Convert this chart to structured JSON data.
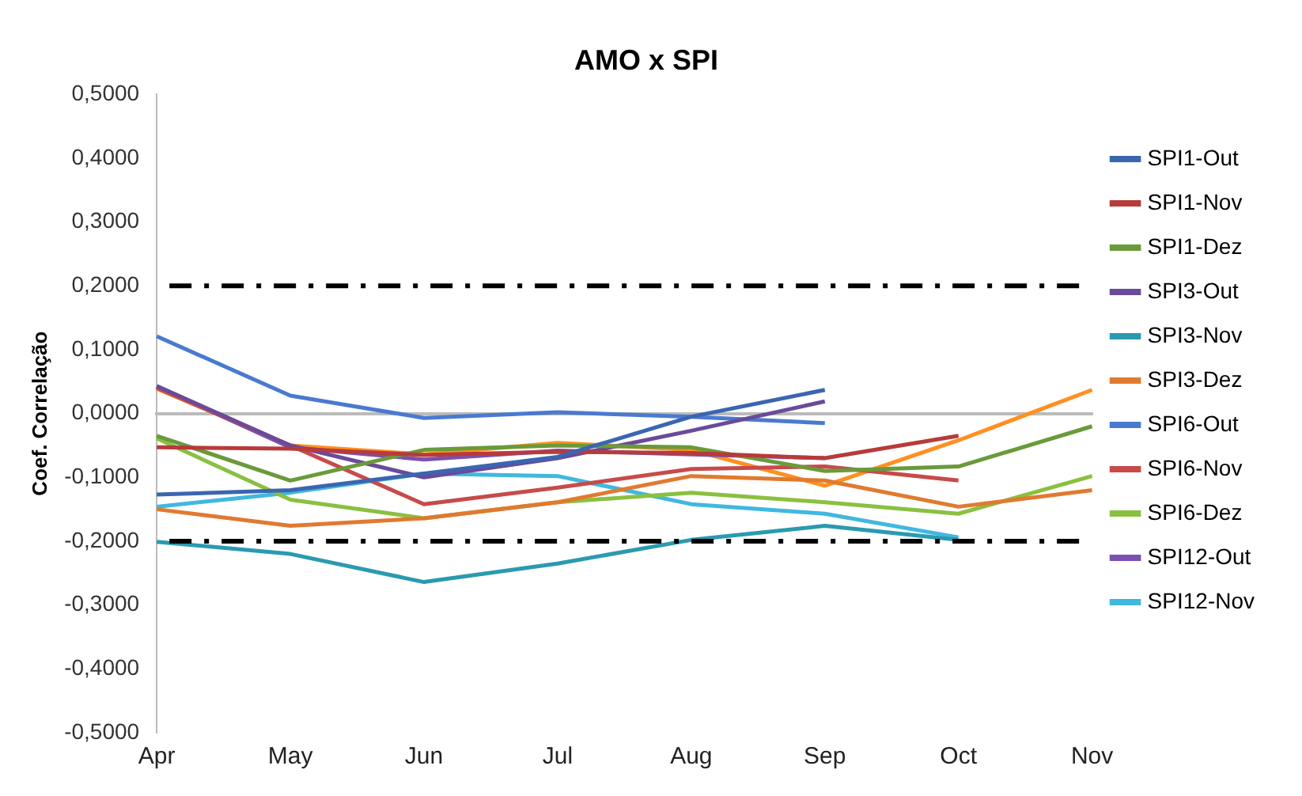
{
  "chart_data": {
    "type": "line",
    "title": "AMO x SPI",
    "ylabel": "Coef. Correlação",
    "categories": [
      "Apr",
      "May",
      "Jun",
      "Jul",
      "Aug",
      "Sep",
      "Oct",
      "Nov"
    ],
    "series": [
      {
        "name": "SPI1-Out",
        "color": "#3a66b0",
        "values": [
          -0.127,
          -0.12,
          -0.094,
          -0.068,
          -0.005,
          0.037,
          null,
          null
        ]
      },
      {
        "name": "SPI1-Nov",
        "color": "#b83a3a",
        "values": [
          -0.053,
          -0.055,
          -0.065,
          -0.06,
          -0.062,
          -0.07,
          -0.035,
          null
        ]
      },
      {
        "name": "SPI1-Dez",
        "color": "#6a9a3a",
        "values": [
          -0.035,
          -0.105,
          -0.057,
          -0.05,
          -0.053,
          -0.09,
          -0.083,
          -0.02
        ]
      },
      {
        "name": "SPI3-Out",
        "color": "#6a4a9a",
        "values": [
          0.043,
          -0.05,
          -0.1,
          -0.07,
          -0.027,
          0.019,
          null,
          null
        ]
      },
      {
        "name": "SPI3-Nov",
        "color": "#2a9ab0",
        "values": [
          -0.201,
          -0.22,
          -0.264,
          -0.235,
          -0.198,
          -0.176,
          -0.198,
          null
        ]
      },
      {
        "name": "SPI3-Dez",
        "color": "#e07a30",
        "values": [
          -0.15,
          -0.176,
          -0.164,
          -0.139,
          -0.098,
          -0.105,
          -0.146,
          -0.12
        ]
      },
      {
        "name": "SPI6-Out",
        "color": "#4a7ad0",
        "values": [
          0.121,
          0.028,
          -0.007,
          0.002,
          -0.005,
          -0.015,
          null,
          null
        ]
      },
      {
        "name": "SPI6-Nov",
        "color": "#c84a4a",
        "values": [
          0.04,
          -0.05,
          -0.142,
          -0.116,
          -0.087,
          -0.083,
          -0.105,
          null
        ]
      },
      {
        "name": "SPI6-Dez",
        "color": "#8ac040",
        "values": [
          -0.039,
          -0.135,
          -0.164,
          -0.139,
          -0.124,
          -0.139,
          -0.157,
          -0.098
        ]
      },
      {
        "name": "SPI12-Out",
        "color": "#7a50b0",
        "values": [
          0.042,
          -0.053,
          -0.072,
          -0.058,
          -0.064,
          -0.07,
          null,
          null
        ]
      },
      {
        "name": "SPI12-Nov",
        "color": "#40b8e0",
        "values": [
          -0.146,
          -0.124,
          -0.094,
          -0.098,
          -0.142,
          -0.157,
          -0.194,
          null
        ]
      },
      {
        "color": "#ff9020",
        "values": [
          0.039,
          -0.05,
          -0.064,
          -0.046,
          -0.057,
          -0.113,
          -0.042,
          0.037
        ]
      }
    ],
    "ylim": [
      -0.5,
      0.5
    ],
    "yticks": [
      {
        "value": -0.5,
        "label": "-0,5000"
      },
      {
        "value": -0.4,
        "label": "-0,4000"
      },
      {
        "value": -0.3,
        "label": "-0,3000"
      },
      {
        "value": -0.2,
        "label": "-0,2000"
      },
      {
        "value": -0.1,
        "label": "-0,1000"
      },
      {
        "value": 0,
        "label": "0,0000"
      },
      {
        "value": 0.1,
        "label": "0,1000"
      },
      {
        "value": 0.2,
        "label": "0,2000"
      },
      {
        "value": 0.3,
        "label": "0,3000"
      },
      {
        "value": 0.4,
        "label": "0,4000"
      },
      {
        "value": 0.5,
        "label": "0,5000"
      }
    ],
    "ref_lines": [
      {
        "axis": "y",
        "value": 0.2,
        "color": "#000000",
        "line_style": "dashdot"
      },
      {
        "axis": "y",
        "value": -0.2,
        "color": "#000000",
        "line_style": "dashdot"
      }
    ],
    "grid": false,
    "legend": "right",
    "marker": "none",
    "line_style": "solid"
  }
}
